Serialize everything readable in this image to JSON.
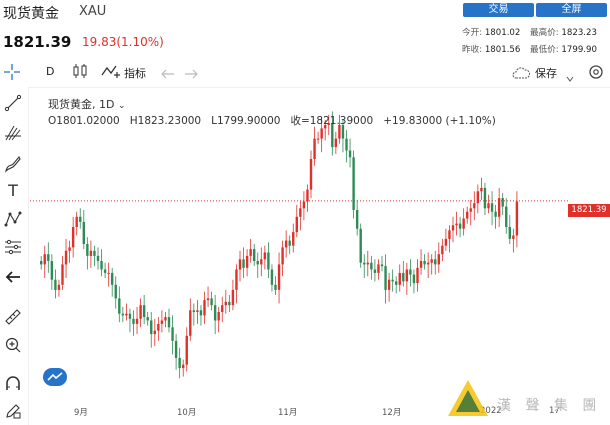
{
  "header": {
    "title": "现货黄金",
    "symbol": "XAU",
    "price": "1821.39",
    "change": "19.83(1.10%)",
    "trade_button": "交易",
    "fullscreen_button": "全屏",
    "stats": {
      "open_label": "今开:",
      "open": "1801.02",
      "high_label": "最高价:",
      "high": "1823.23",
      "prev_close_label": "昨收:",
      "prev_close": "1801.56",
      "low_label": "最低价:",
      "low": "1799.90"
    }
  },
  "toolbar": {
    "interval": "D",
    "indicators_label": "指标",
    "save_label": "保存",
    "icons": [
      "candlestick-icon",
      "indicator-icon",
      "undo-icon",
      "redo-icon",
      "cloud-icon",
      "gear-icon"
    ]
  },
  "left_tools": [
    "crosshair-icon",
    "trend-line-icon",
    "fib-icon",
    "brush-icon",
    "text-icon",
    "pattern-icon",
    "measure-icon",
    "back-arrow-icon",
    "ruler-icon",
    "zoom-icon",
    "magnet-icon",
    "lock-pencil-icon"
  ],
  "legend": {
    "name": "现货黄金, 1D",
    "open": "O1801.02000",
    "high": "H1823.23000",
    "low": "L1799.90000",
    "close": "收=1821.39000",
    "change": "+19.83000 (+1.10%)"
  },
  "price_tag": "1821.39",
  "months": [
    "9月",
    "10月",
    "11月",
    "12月",
    "2022",
    "17"
  ],
  "watermark": "漢 聲 集 團",
  "colors": {
    "up": "#e0302a",
    "down": "#2e8b57",
    "accent": "#2673c8"
  },
  "chart_data": {
    "type": "candlestick",
    "last_close": 1821.39,
    "closes": [
      1784,
      1790,
      1786,
      1775,
      1769,
      1772,
      1784,
      1792,
      1794,
      1806,
      1812,
      1809,
      1796,
      1789,
      1792,
      1789,
      1786,
      1781,
      1779,
      1779,
      1772,
      1764,
      1755,
      1754,
      1755,
      1752,
      1749,
      1752,
      1760,
      1753,
      1751,
      1743,
      1745,
      1749,
      1751,
      1753,
      1747,
      1739,
      1729,
      1723,
      1725,
      1742,
      1757,
      1756,
      1757,
      1754,
      1763,
      1764,
      1760,
      1751,
      1756,
      1760,
      1762,
      1760,
      1769,
      1781,
      1787,
      1782,
      1789,
      1793,
      1786,
      1784,
      1787,
      1791,
      1781,
      1772,
      1769,
      1784,
      1794,
      1798,
      1795,
      1803,
      1812,
      1817,
      1821,
      1828,
      1846,
      1858,
      1858,
      1864,
      1866,
      1867,
      1853,
      1858,
      1866,
      1858,
      1851,
      1847,
      1816,
      1805,
      1785,
      1784,
      1785,
      1781,
      1779,
      1784,
      1783,
      1769,
      1775,
      1774,
      1772,
      1779,
      1774,
      1781,
      1778,
      1773,
      1782,
      1786,
      1784,
      1785,
      1787,
      1784,
      1790,
      1795,
      1799,
      1804,
      1807,
      1808,
      1805,
      1811,
      1815,
      1817,
      1820,
      1827,
      1829,
      1817,
      1820,
      1815,
      1812,
      1823,
      1818,
      1806,
      1799,
      1801,
      1821
    ]
  }
}
